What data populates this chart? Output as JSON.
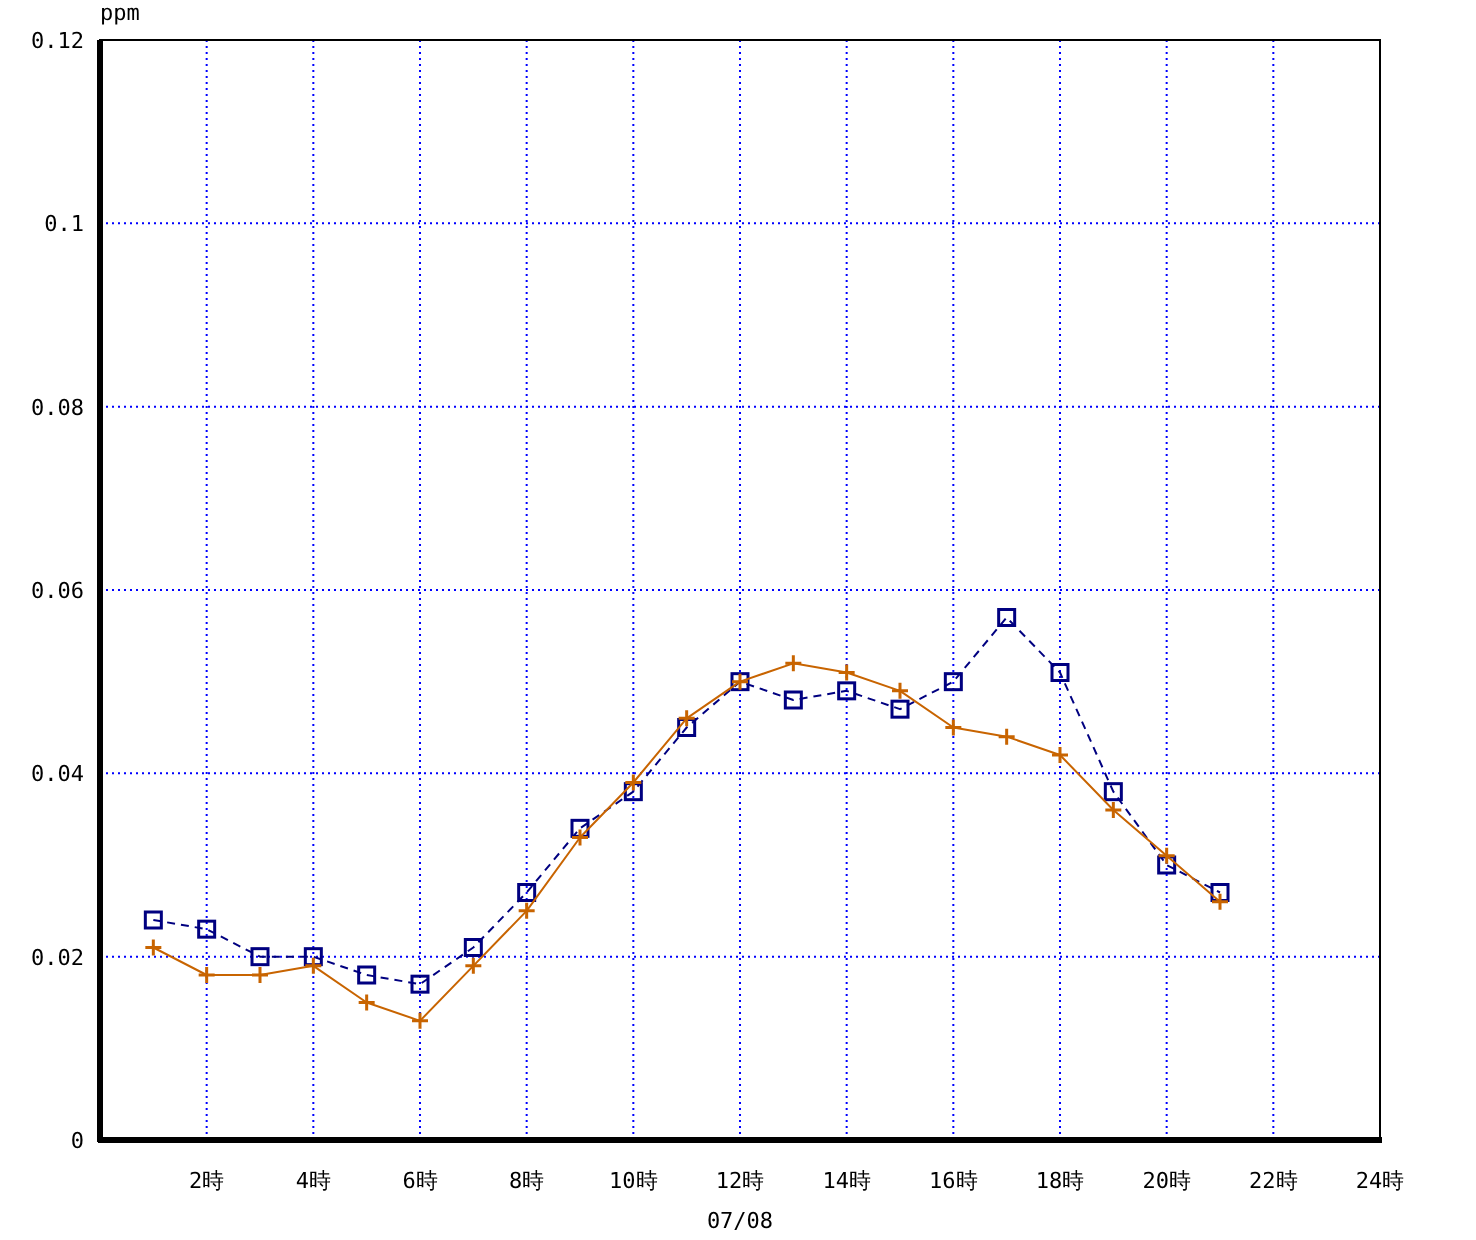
{
  "chart_data": {
    "type": "line",
    "ylabel": "ppm",
    "xlabel": "07/08",
    "x": [
      1,
      2,
      3,
      4,
      5,
      6,
      7,
      8,
      9,
      10,
      11,
      12,
      13,
      14,
      15,
      16,
      17,
      18,
      19,
      20,
      21
    ],
    "series": [
      {
        "color": "#000080",
        "marker": "square",
        "line_style": "dashed",
        "values": [
          0.024,
          0.023,
          0.02,
          0.02,
          0.018,
          0.017,
          0.021,
          0.027,
          0.034,
          0.038,
          0.045,
          0.05,
          0.048,
          0.049,
          0.047,
          0.05,
          0.057,
          0.051,
          0.038,
          0.03,
          0.027
        ]
      },
      {
        "color": "#c86400",
        "marker": "cross",
        "line_style": "solid",
        "values": [
          0.021,
          0.018,
          0.018,
          0.019,
          0.015,
          0.013,
          0.019,
          0.025,
          0.033,
          0.039,
          0.046,
          0.05,
          0.052,
          0.051,
          0.049,
          0.045,
          0.044,
          0.042,
          0.036,
          0.031,
          0.026
        ]
      }
    ],
    "xlim": [
      0,
      24
    ],
    "xticks": [
      {
        "value": 2,
        "label": "2時"
      },
      {
        "value": 4,
        "label": "4時"
      },
      {
        "value": 6,
        "label": "6時"
      },
      {
        "value": 8,
        "label": "8時"
      },
      {
        "value": 10,
        "label": "10時"
      },
      {
        "value": 12,
        "label": "12時"
      },
      {
        "value": 14,
        "label": "14時"
      },
      {
        "value": 16,
        "label": "16時"
      },
      {
        "value": 18,
        "label": "18時"
      },
      {
        "value": 20,
        "label": "20時"
      },
      {
        "value": 22,
        "label": "22時"
      },
      {
        "value": 24,
        "label": "24時"
      }
    ],
    "ylim": [
      0,
      0.12
    ],
    "yticks": [
      0,
      0.02,
      0.04,
      0.06,
      0.08,
      0.1,
      0.12
    ],
    "grid": true
  }
}
